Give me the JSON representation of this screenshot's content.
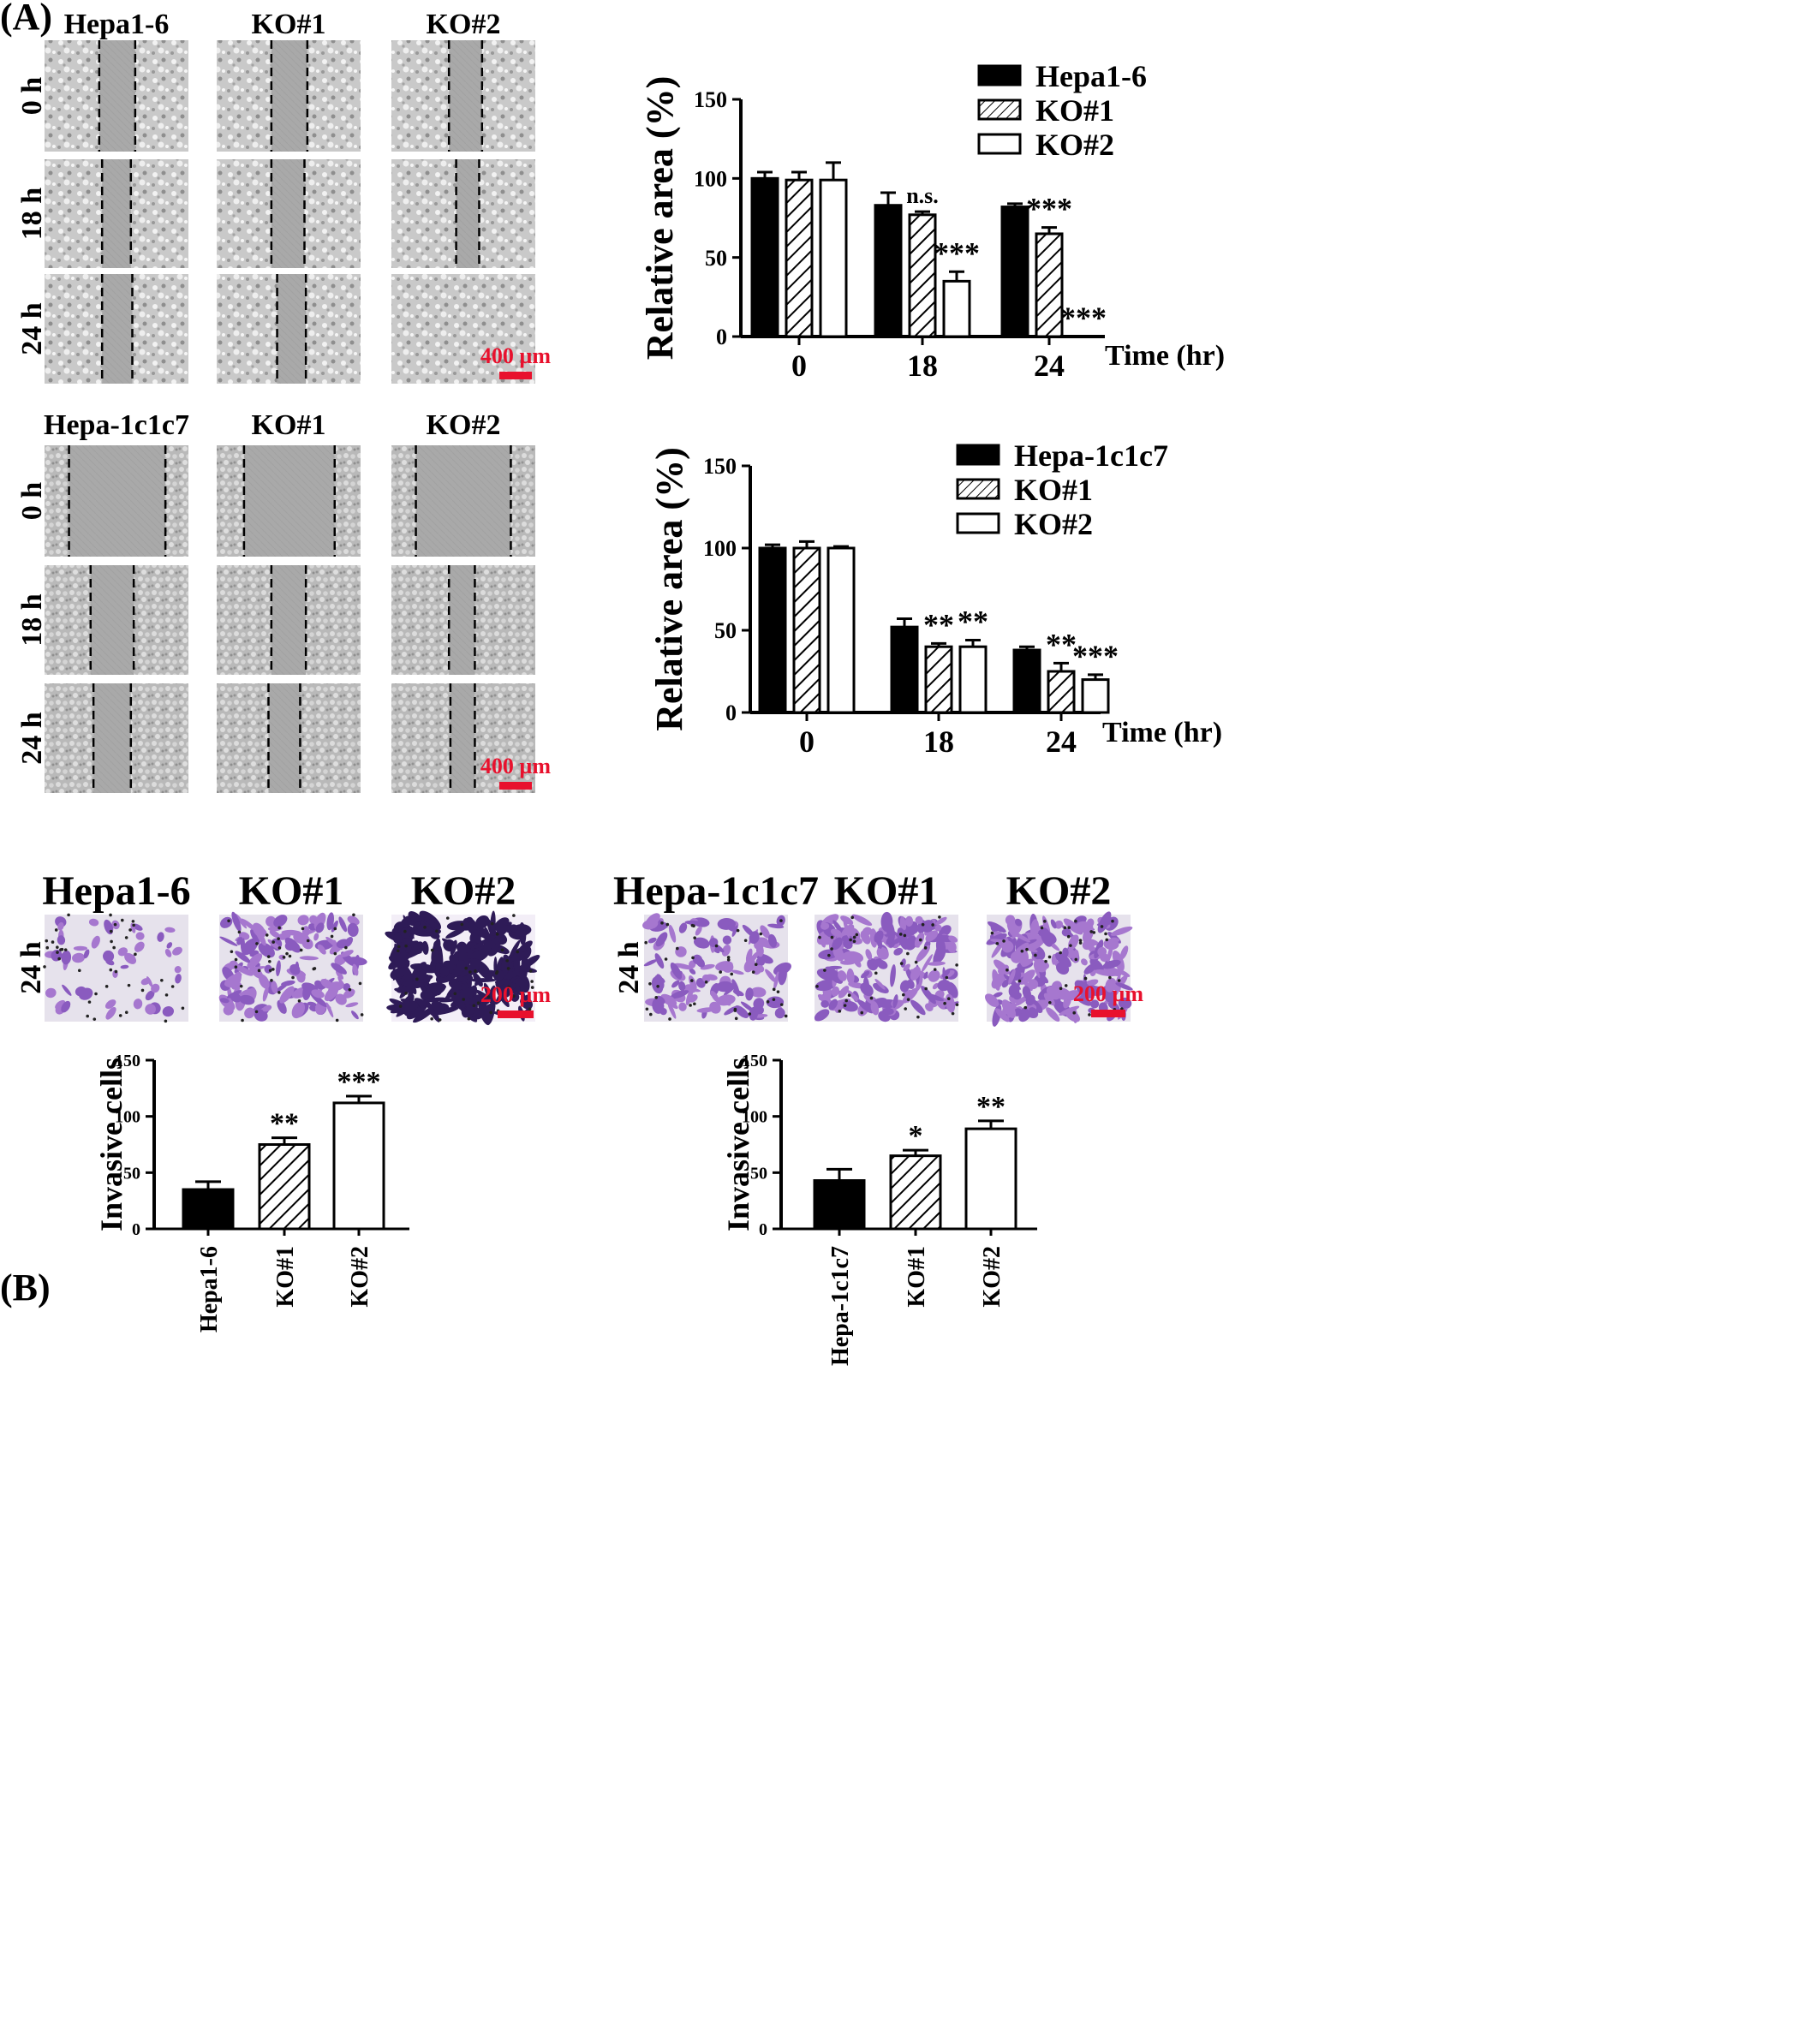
{
  "panel_labels": {
    "a": "(A)",
    "b": "(B)"
  },
  "micrograph_panels": [
    {
      "section": "A1",
      "columns": [
        "Hepa1-6",
        "KO#1",
        "KO#2"
      ],
      "rows": [
        "0 h",
        "18 h",
        "24 h"
      ],
      "scale_bar": "400 µm",
      "stain": "phase"
    },
    {
      "section": "A2",
      "columns": [
        "Hepa-1c1c7",
        "KO#1",
        "KO#2"
      ],
      "rows": [
        "0 h",
        "18 h",
        "24 h"
      ],
      "scale_bar": "400 µm",
      "stain": "phase"
    },
    {
      "section": "B1",
      "columns": [
        "Hepa1-6",
        "KO#1",
        "KO#2"
      ],
      "rows": [
        "24 h"
      ],
      "scale_bar": "200 µm",
      "stain": "crystal-violet",
      "density": [
        0.12,
        0.45,
        0.95
      ]
    },
    {
      "section": "B2",
      "columns": [
        "Hepa-1c1c7",
        "KO#1",
        "KO#2"
      ],
      "rows": [
        "24 h"
      ],
      "scale_bar": "200 µm",
      "stain": "crystal-violet",
      "density": [
        0.35,
        0.55,
        0.6
      ]
    }
  ],
  "colors": {
    "bar_dark": "#000000",
    "bar_open": "#ffffff",
    "scale": "#e8112d",
    "stain": "#6b3fa8"
  },
  "chart_data": [
    {
      "id": "wound-hepa16",
      "type": "bar",
      "categories": [
        "0",
        "18",
        "24"
      ],
      "series": [
        {
          "name": "Hepa1-6",
          "style": "solid",
          "values": [
            100,
            83,
            82
          ],
          "errors": [
            4,
            8,
            2
          ],
          "annotations": [
            "",
            "",
            ""
          ]
        },
        {
          "name": "KO#1",
          "style": "hatched",
          "values": [
            99,
            77,
            65
          ],
          "errors": [
            5,
            2,
            4
          ],
          "annotations": [
            "",
            "n.s.",
            "***"
          ]
        },
        {
          "name": "KO#2",
          "style": "open",
          "values": [
            99,
            35,
            0
          ],
          "errors": [
            11,
            6,
            0
          ],
          "annotations": [
            "",
            "***",
            "***"
          ]
        }
      ],
      "ylabel": "Relative  area (%)",
      "xlabel": "Time (hr)",
      "ylim": [
        0,
        150
      ],
      "yticks": [
        "0",
        "50",
        "100",
        "150"
      ],
      "legend": "top-right"
    },
    {
      "id": "wound-hepa1c1c7",
      "type": "bar",
      "categories": [
        "0",
        "18",
        "24"
      ],
      "series": [
        {
          "name": "Hepa-1c1c7",
          "style": "solid",
          "values": [
            100,
            52,
            38
          ],
          "errors": [
            2,
            5,
            2
          ],
          "annotations": [
            "",
            "",
            ""
          ]
        },
        {
          "name": "KO#1",
          "style": "hatched",
          "values": [
            100,
            40,
            25
          ],
          "errors": [
            4,
            2,
            5
          ],
          "annotations": [
            "",
            "**",
            "**"
          ]
        },
        {
          "name": "KO#2",
          "style": "open",
          "values": [
            100,
            40,
            20
          ],
          "errors": [
            1,
            4,
            3
          ],
          "annotations": [
            "",
            "**",
            "***"
          ]
        }
      ],
      "ylabel": "Relative area (%)",
      "xlabel": "Time (hr)",
      "ylim": [
        0,
        150
      ],
      "yticks": [
        "0",
        "50",
        "100",
        "150"
      ],
      "legend": "top-right"
    },
    {
      "id": "invasion-hepa16",
      "type": "bar",
      "categories": [
        "Hepa1-6",
        "KO#1",
        "KO#2"
      ],
      "styles": [
        "solid",
        "hatched",
        "open"
      ],
      "values": [
        35,
        75,
        112
      ],
      "errors": [
        7,
        6,
        6
      ],
      "annotations": [
        "",
        "**",
        "***"
      ],
      "ylabel": "Invasive cells",
      "ylim": [
        0,
        150
      ],
      "yticks": [
        "0",
        "50",
        "100",
        "150"
      ]
    },
    {
      "id": "invasion-hepa1c1c7",
      "type": "bar",
      "categories": [
        "Hepa-1c1c7",
        "KO#1",
        "KO#2"
      ],
      "styles": [
        "solid",
        "hatched",
        "open"
      ],
      "values": [
        43,
        65,
        89
      ],
      "errors": [
        10,
        5,
        7
      ],
      "annotations": [
        "",
        "*",
        "**"
      ],
      "ylabel": "Invasive cells",
      "ylim": [
        0,
        150
      ],
      "yticks": [
        "0",
        "50",
        "100",
        "150"
      ]
    }
  ]
}
